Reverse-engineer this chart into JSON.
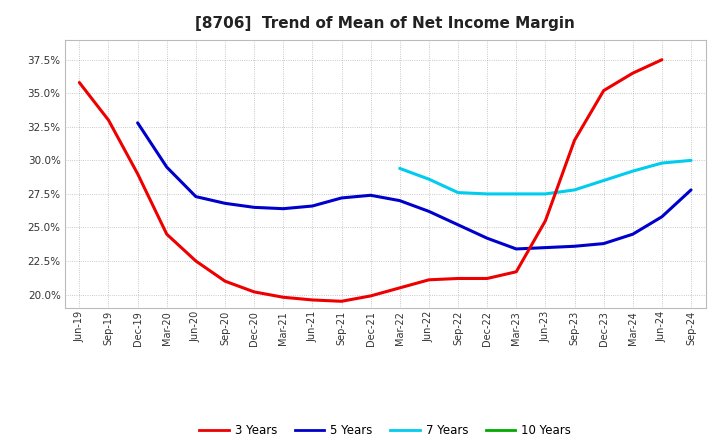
{
  "title": "[8706]  Trend of Mean of Net Income Margin",
  "x_labels": [
    "Jun-19",
    "Sep-19",
    "Dec-19",
    "Mar-20",
    "Jun-20",
    "Sep-20",
    "Dec-20",
    "Mar-21",
    "Jun-21",
    "Sep-21",
    "Dec-21",
    "Mar-22",
    "Jun-22",
    "Sep-22",
    "Dec-22",
    "Mar-23",
    "Jun-23",
    "Sep-23",
    "Dec-23",
    "Mar-24",
    "Jun-24",
    "Sep-24"
  ],
  "series_3y": {
    "color": "#EE0000",
    "x": [
      0,
      1,
      2,
      3,
      4,
      5,
      6,
      7,
      8,
      9,
      10,
      11,
      12,
      13,
      14,
      15,
      16,
      17,
      18,
      19,
      20
    ],
    "y": [
      35.8,
      33.0,
      29.0,
      24.5,
      22.5,
      21.0,
      20.2,
      19.8,
      19.6,
      19.5,
      19.9,
      20.5,
      21.1,
      21.2,
      21.2,
      21.7,
      25.5,
      31.5,
      35.2,
      36.5,
      37.5
    ]
  },
  "series_5y": {
    "color": "#0000CC",
    "x": [
      2,
      3,
      4,
      5,
      6,
      7,
      8,
      9,
      10,
      11,
      12,
      13,
      14,
      15,
      16,
      17,
      18,
      19,
      20,
      21
    ],
    "y": [
      32.8,
      29.5,
      27.3,
      26.8,
      26.5,
      26.4,
      26.6,
      27.2,
      27.4,
      27.0,
      26.2,
      25.2,
      24.2,
      23.4,
      23.5,
      23.6,
      23.8,
      24.5,
      25.8,
      27.8
    ]
  },
  "series_7y": {
    "color": "#00CCEE",
    "x": [
      11,
      12,
      13,
      14,
      15,
      16,
      17,
      18,
      19,
      20,
      21
    ],
    "y": [
      29.4,
      28.6,
      27.6,
      27.5,
      27.5,
      27.5,
      27.8,
      28.5,
      29.2,
      29.8,
      30.0
    ]
  },
  "series_10y": {
    "color": "#00AA00",
    "x": [],
    "y": []
  },
  "ylim": [
    19.0,
    39.0
  ],
  "yticks": [
    20.0,
    22.5,
    25.0,
    27.5,
    30.0,
    32.5,
    35.0,
    37.5
  ],
  "background_color": "#FFFFFF",
  "grid_color": "#888888",
  "title_fontsize": 11,
  "legend_labels": [
    "3 Years",
    "5 Years",
    "7 Years",
    "10 Years"
  ],
  "legend_colors": [
    "#EE0000",
    "#0000CC",
    "#00CCEE",
    "#00AA00"
  ]
}
